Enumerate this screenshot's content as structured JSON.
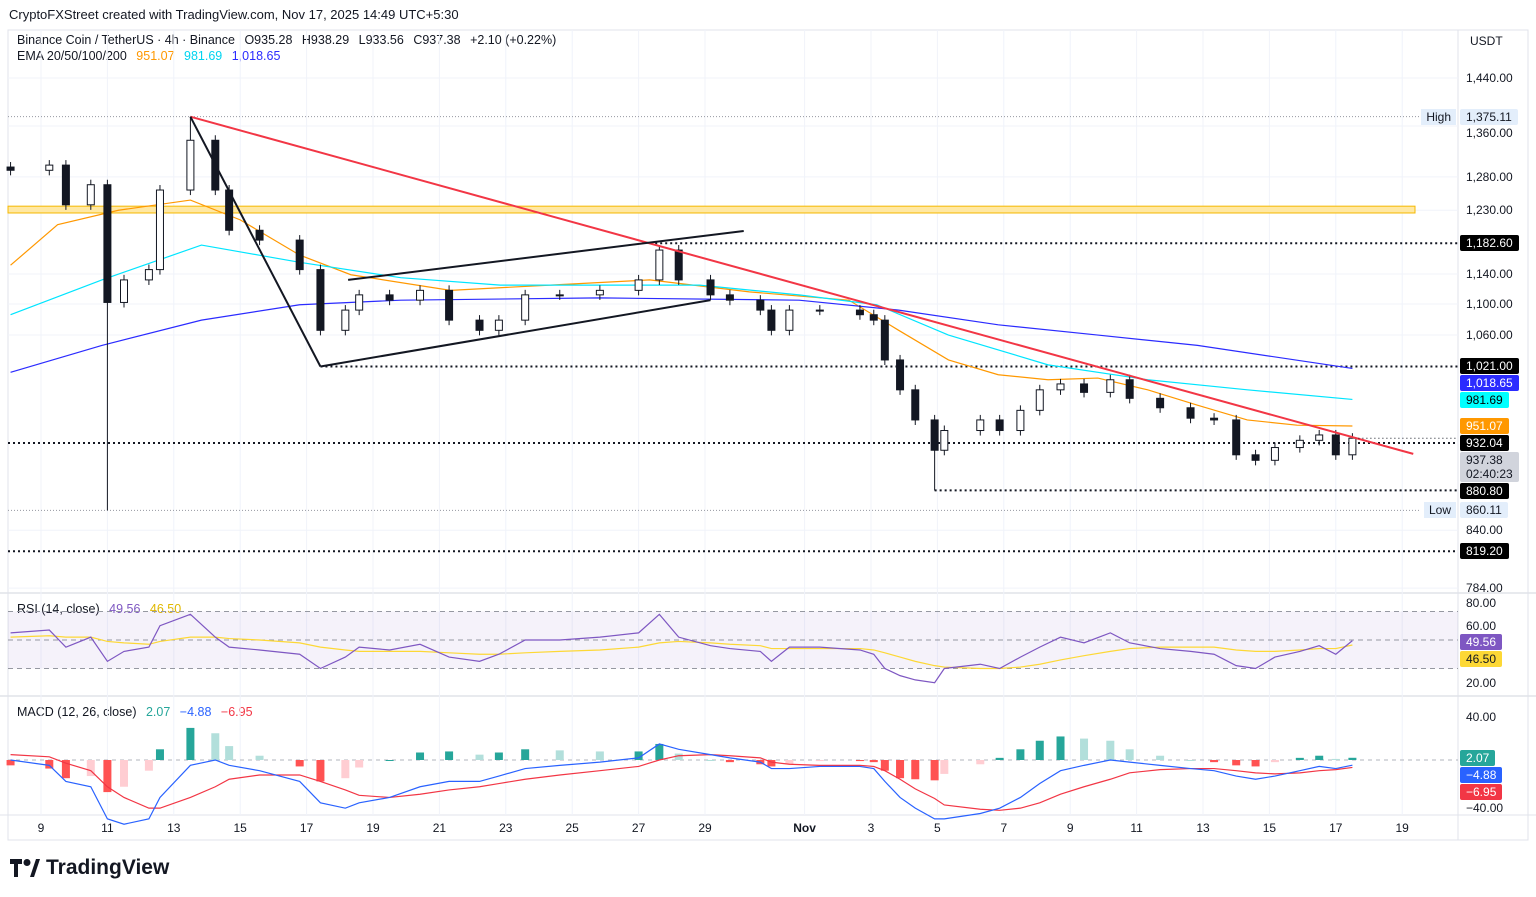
{
  "header": {
    "credit": "CryptoFXStreet created with TradingView.com, Nov 17, 2025 14:49 UTC+5:30"
  },
  "symbol": {
    "name": "Binance Coin / TetherUS · 4h · Binance",
    "open": "O935.28",
    "high": "H938.29",
    "low": "L933.56",
    "close": "C937.38",
    "change": "+2.10 (+0.22%)"
  },
  "ema_legend": {
    "label": "EMA 20/50/100/200",
    "v1": "951.07",
    "v2": "981.69",
    "v3": "1,018.65"
  },
  "rsi_legend": {
    "label": "RSI (14, close)",
    "v1": "49.56",
    "v2": "46.50"
  },
  "macd_legend": {
    "label": "MACD (12, 26, close)",
    "v1": "2.07",
    "v2": "−4.88",
    "v3": "−6.95"
  },
  "unit": "USDT",
  "logo": "TradingView",
  "colors": {
    "ema1": "#ff9800",
    "ema2": "#00e5ff",
    "ema3": "#2b2bff",
    "trend": "#f23645",
    "rsi": "#7e57c2",
    "rsi_ma": "#fdd835",
    "macd": "#2962ff",
    "signal": "#f23645",
    "hist_up": "#26a69a",
    "hist_dn": "#ff5252"
  },
  "chart_data": {
    "type": "candlestick",
    "price_scale": "log",
    "ylim": [
      784,
      1440
    ],
    "price_ticks": [
      "1,440.00",
      "1,360.00",
      "1,280.00",
      "1,230.00",
      "1,140.00",
      "1,100.00",
      "1,060.00",
      "840.00",
      "784.00"
    ],
    "price_tick_values": [
      1440,
      1360,
      1280,
      1230,
      1140,
      1100,
      1060,
      840,
      784
    ],
    "time_ticks": [
      [
        "2025-10-09",
        "9"
      ],
      [
        "2025-10-11",
        "11"
      ],
      [
        "2025-10-13",
        "13"
      ],
      [
        "2025-10-15",
        "15"
      ],
      [
        "2025-10-17",
        "17"
      ],
      [
        "2025-10-19",
        "19"
      ],
      [
        "2025-10-21",
        "21"
      ],
      [
        "2025-10-23",
        "23"
      ],
      [
        "2025-10-25",
        "25"
      ],
      [
        "2025-10-27",
        "27"
      ],
      [
        "2025-10-29",
        "29"
      ],
      [
        "2025-11-01",
        "Nov"
      ],
      [
        "2025-11-03",
        "3"
      ],
      [
        "2025-11-05",
        "5"
      ],
      [
        "2025-11-07",
        "7"
      ],
      [
        "2025-11-09",
        "9"
      ],
      [
        "2025-11-11",
        "11"
      ],
      [
        "2025-11-13",
        "13"
      ],
      [
        "2025-11-15",
        "15"
      ],
      [
        "2025-11-17",
        "17"
      ],
      [
        "2025-11-19",
        "19"
      ]
    ],
    "times": [
      "2025-10-08T02:00",
      "2025-10-09T06:00",
      "2025-10-09T18:00",
      "2025-10-10T12:00",
      "2025-10-11T00:00",
      "2025-10-11T12:00",
      "2025-10-12T06:00",
      "2025-10-12T14:00",
      "2025-10-13T12:00",
      "2025-10-14T06:00",
      "2025-10-14T16:00",
      "2025-10-15T14:00",
      "2025-10-16T19:00",
      "2025-10-17T10:00",
      "2025-10-18T04:00",
      "2025-10-18T14:00",
      "2025-10-19T12:00",
      "2025-10-20T10:00",
      "2025-10-21T07:00",
      "2025-10-22T05:00",
      "2025-10-22T19:00",
      "2025-10-23T14:00",
      "2025-10-24T15:00",
      "2025-10-25T20:00",
      "2025-10-27T00:00",
      "2025-10-27T15:00",
      "2025-10-28T05:00",
      "2025-10-29T04:00",
      "2025-10-29T18:00",
      "2025-10-30T16:00",
      "2025-10-31T00:00",
      "2025-10-31T13:00",
      "2025-11-01T11:00",
      "2025-11-02T16:00",
      "2025-11-03T02:00",
      "2025-11-03T10:00",
      "2025-11-03T21:00",
      "2025-11-04T08:00",
      "2025-11-04T22:00",
      "2025-11-05T05:00",
      "2025-11-06T07:00",
      "2025-11-06T21:00",
      "2025-11-07T12:00",
      "2025-11-08T02:00",
      "2025-11-08T17:00",
      "2025-11-09T10:00",
      "2025-11-10T05:00",
      "2025-11-10T19:00",
      "2025-11-11T17:00",
      "2025-11-12T15:00",
      "2025-11-13T08:00",
      "2025-11-14T00:00",
      "2025-11-14T14:00",
      "2025-11-15T04:00",
      "2025-11-15T22:00",
      "2025-11-16T12:00",
      "2025-11-17T00:00",
      "2025-11-17T12:00"
    ],
    "close": [
      1290,
      1298,
      1238,
      1268,
      1102,
      1132,
      1146,
      1260,
      1337,
      1260,
      1201,
      1187,
      1146,
      1066,
      1092,
      1112,
      1105,
      1118,
      1079,
      1066,
      1079,
      1112,
      1112,
      1118,
      1132,
      1173,
      1132,
      1112,
      1105,
      1092,
      1066,
      1092,
      1092,
      1086,
      1079,
      1029,
      993,
      958,
      924,
      946,
      958,
      946,
      969,
      993,
      1000,
      990,
      1005,
      983,
      972,
      960,
      958,
      919,
      913,
      927,
      935,
      941,
      919,
      937.38
    ],
    "wick_extremes": [
      {
        "time": "2025-10-11T00:00",
        "low": 860.11
      },
      {
        "time": "2025-10-13T12:00",
        "high": 1375.11
      },
      {
        "time": "2025-11-04T22:00",
        "low": 880.8
      }
    ],
    "ema": [
      {
        "name": "951.07",
        "points": [
          [
            "2025-10-08T02:00",
            1152
          ],
          [
            "2025-10-09T12:00",
            1209
          ],
          [
            "2025-10-11T08:00",
            1230
          ],
          [
            "2025-10-13T12:00",
            1245
          ],
          [
            "2025-10-15T00:00",
            1216
          ],
          [
            "2025-10-16T19:00",
            1166
          ],
          [
            "2025-10-18T08:00",
            1139
          ],
          [
            "2025-10-21T08:00",
            1118
          ],
          [
            "2025-10-24T08:00",
            1125
          ],
          [
            "2025-10-27T08:00",
            1132
          ],
          [
            "2025-10-30T08:00",
            1116
          ],
          [
            "2025-11-02T08:00",
            1105
          ],
          [
            "2025-11-03T20:00",
            1066
          ],
          [
            "2025-11-05T08:00",
            1029
          ],
          [
            "2025-11-06T20:00",
            1011
          ],
          [
            "2025-11-08T08:00",
            1005
          ],
          [
            "2025-11-09T20:00",
            1007
          ],
          [
            "2025-11-11T08:00",
            993
          ],
          [
            "2025-11-12T20:00",
            975
          ],
          [
            "2025-11-14T08:00",
            958
          ],
          [
            "2025-11-15T20:00",
            952
          ],
          [
            "2025-11-17T12:00",
            951.07
          ]
        ]
      },
      {
        "name": "981.69",
        "points": [
          [
            "2025-10-08T02:00",
            1086
          ],
          [
            "2025-10-10T20:00",
            1132
          ],
          [
            "2025-10-13T20:00",
            1180
          ],
          [
            "2025-10-16T19:00",
            1156
          ],
          [
            "2025-10-19T20:00",
            1135
          ],
          [
            "2025-10-22T20:00",
            1125
          ],
          [
            "2025-10-25T20:00",
            1125
          ],
          [
            "2025-10-28T20:00",
            1125
          ],
          [
            "2025-10-31T20:00",
            1112
          ],
          [
            "2025-11-03T04:00",
            1099
          ],
          [
            "2025-11-05T08:00",
            1060
          ],
          [
            "2025-11-08T08:00",
            1023
          ],
          [
            "2025-11-11T08:00",
            1005
          ],
          [
            "2025-11-14T08:00",
            993
          ],
          [
            "2025-11-17T12:00",
            981.69
          ]
        ]
      },
      {
        "name": "1,018.65",
        "points": [
          [
            "2025-10-08T02:00",
            1014
          ],
          [
            "2025-10-10T20:00",
            1047
          ],
          [
            "2025-10-13T20:00",
            1079
          ],
          [
            "2025-10-16T19:00",
            1099
          ],
          [
            "2025-10-19T20:00",
            1105
          ],
          [
            "2025-10-25T20:00",
            1108
          ],
          [
            "2025-10-31T20:00",
            1105
          ],
          [
            "2025-11-03T20:00",
            1092
          ],
          [
            "2025-11-06T20:00",
            1073
          ],
          [
            "2025-11-09T20:00",
            1060
          ],
          [
            "2025-11-12T20:00",
            1047
          ],
          [
            "2025-11-17T12:00",
            1018.65
          ]
        ]
      }
    ],
    "levels": [
      {
        "label": "1,182.60",
        "value": 1182.6,
        "from": "2025-10-27T12:00"
      },
      {
        "label": "1,021.00",
        "value": 1021,
        "from": "2025-10-17T10:00"
      },
      {
        "label": "932.04",
        "value": 932.04,
        "from": "2025-10-08T00:00"
      },
      {
        "label": "880.80",
        "value": 880.8,
        "from": "2025-11-04T22:00"
      },
      {
        "label": "819.20",
        "value": 819.2,
        "from": "2025-10-08T00:00"
      }
    ],
    "high_marker": {
      "label": "High",
      "value_label": "1,375.11",
      "value": 1375.11
    },
    "low_marker": {
      "label": "Low",
      "value_label": "860.11",
      "value": 860.11
    },
    "zone": {
      "low": 1226,
      "high": 1236
    },
    "trendlines": [
      {
        "kind": "red",
        "from": [
          "2025-10-13T12:00",
          1375.11
        ],
        "to": [
          "2025-11-19T08:00",
          920
        ]
      },
      {
        "kind": "black",
        "from": [
          "2025-10-13T12:00",
          1375.11
        ],
        "to": [
          "2025-10-17T10:00",
          1021
        ]
      },
      {
        "kind": "black",
        "from": [
          "2025-10-17T10:00",
          1021
        ],
        "to": [
          "2025-10-29T04:00",
          1105
        ]
      },
      {
        "kind": "black",
        "from": [
          "2025-10-18T06:00",
          1132
        ],
        "to": [
          "2025-10-30T04:00",
          1200
        ]
      }
    ],
    "last_price": {
      "value_label": "937.38",
      "countdown": "02:40:23",
      "ema_badges": [
        "951.07",
        "981.69",
        "1,018.65"
      ]
    },
    "rsi": {
      "ticks": [
        80,
        60,
        20
      ],
      "tick_labels": [
        "80.00",
        "60.00",
        "20.00"
      ],
      "bands": [
        70,
        30
      ],
      "mid": 50,
      "values": [
        55,
        57,
        45,
        52,
        35,
        42,
        45,
        60,
        68,
        52,
        45,
        43,
        40,
        30,
        38,
        45,
        43,
        47,
        38,
        35,
        40,
        50,
        50,
        52,
        55,
        68,
        52,
        46,
        44,
        42,
        35,
        45,
        45,
        43,
        40,
        30,
        25,
        22,
        20,
        30,
        33,
        30,
        38,
        45,
        52,
        48,
        55,
        48,
        44,
        42,
        40,
        32,
        30,
        38,
        42,
        46,
        40,
        49.56
      ],
      "ma": [
        52,
        53,
        52,
        52,
        49,
        48,
        47,
        49,
        52,
        52,
        51,
        50,
        48,
        45,
        43,
        42,
        42,
        42,
        41,
        40,
        40,
        41,
        42,
        43,
        45,
        48,
        49,
        48,
        47,
        46,
        44,
        44,
        44,
        44,
        43,
        41,
        38,
        35,
        32,
        31,
        30,
        30,
        31,
        33,
        36,
        39,
        42,
        44,
        45,
        45,
        45,
        43,
        42,
        42,
        43,
        44,
        44,
        46.5
      ]
    },
    "macd": {
      "ticks": [
        40,
        -40
      ],
      "tick_labels": [
        "40.00",
        "−40.00"
      ],
      "macd": [
        0,
        -5,
        -20,
        -25,
        -55,
        -60,
        -55,
        -35,
        -5,
        0,
        -5,
        -10,
        -20,
        -40,
        -45,
        -40,
        -35,
        -25,
        -20,
        -20,
        -15,
        -8,
        -5,
        -2,
        2,
        15,
        10,
        5,
        2,
        -2,
        -8,
        -8,
        -6,
        -6,
        -8,
        -20,
        -35,
        -45,
        -55,
        -55,
        -50,
        -45,
        -35,
        -22,
        -10,
        -5,
        0,
        -2,
        -5,
        -8,
        -10,
        -15,
        -18,
        -15,
        -10,
        -6,
        -8,
        -4.88
      ],
      "signal": [
        5,
        3,
        -3,
        -10,
        -25,
        -35,
        -45,
        -45,
        -35,
        -25,
        -18,
        -14,
        -14,
        -20,
        -28,
        -33,
        -35,
        -32,
        -28,
        -25,
        -22,
        -18,
        -14,
        -10,
        -6,
        0,
        4,
        5,
        4,
        2,
        -2,
        -4,
        -5,
        -5,
        -6,
        -10,
        -18,
        -27,
        -36,
        -42,
        -46,
        -47,
        -45,
        -40,
        -32,
        -25,
        -18,
        -12,
        -9,
        -8,
        -8,
        -10,
        -12,
        -13,
        -12,
        -10,
        -9,
        -6.95
      ]
    }
  }
}
